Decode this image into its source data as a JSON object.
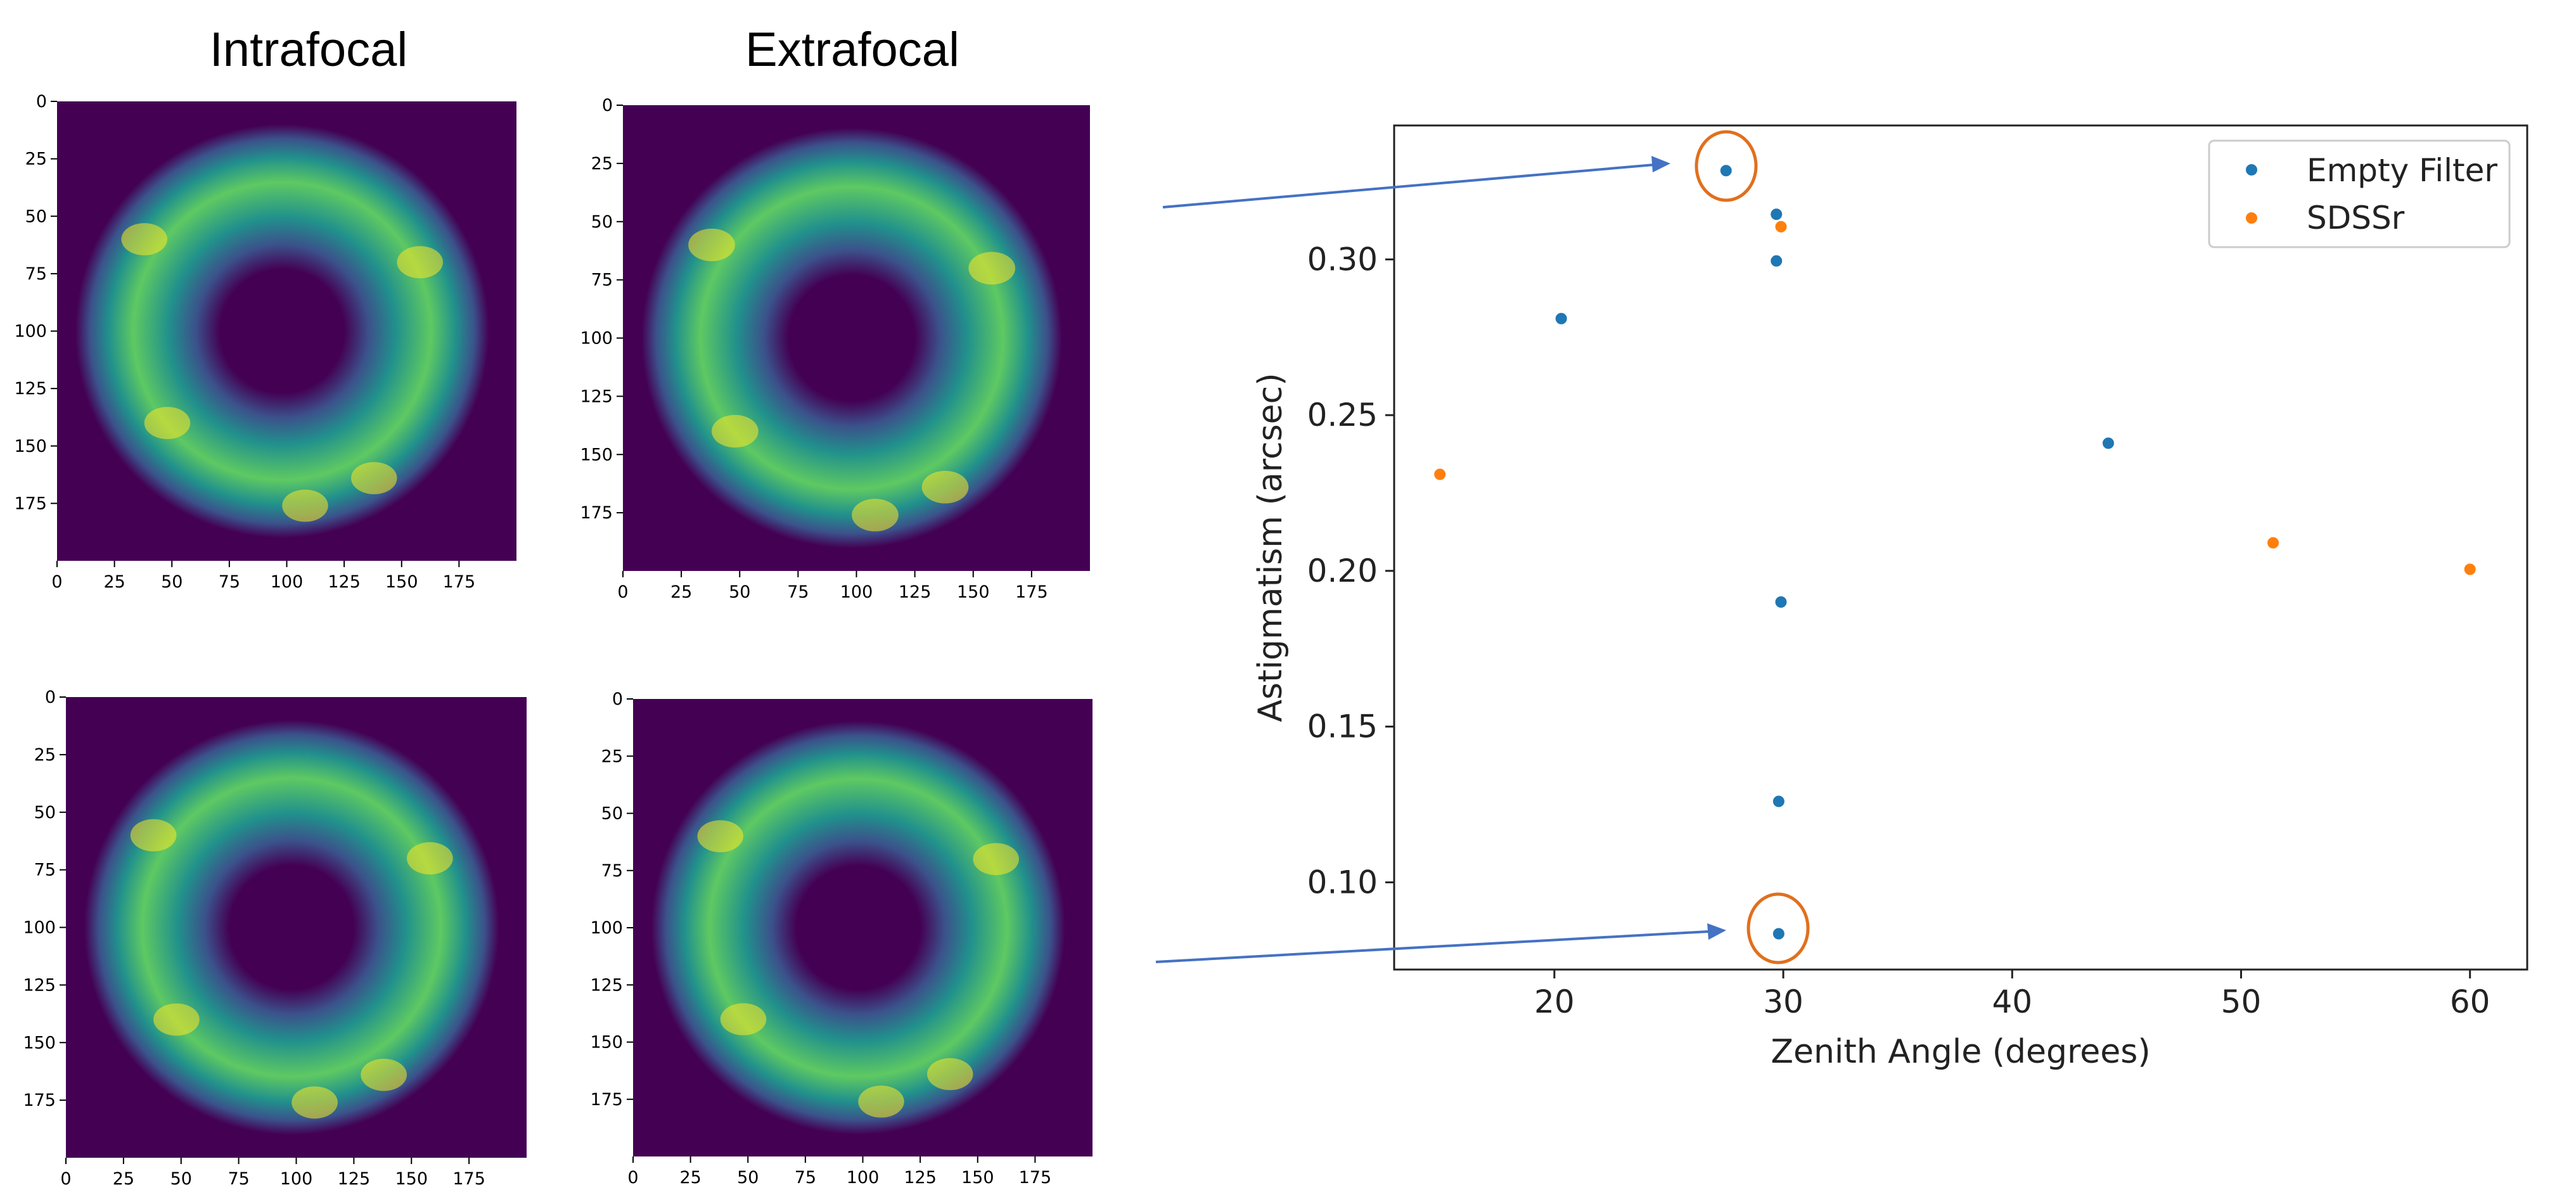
{
  "panels": {
    "titles": [
      "Intrafocal",
      "Extrafocal"
    ],
    "tick_labels": [
      "0",
      "25",
      "50",
      "75",
      "100",
      "125",
      "150",
      "175"
    ],
    "colormap": [
      "#440154",
      "#3b528b",
      "#21918c",
      "#5ec962",
      "#fde725"
    ],
    "images": [
      {
        "column": "Intrafocal",
        "row": 1
      },
      {
        "column": "Extrafocal",
        "row": 1
      },
      {
        "column": "Intrafocal",
        "row": 2
      },
      {
        "column": "Extrafocal",
        "row": 2
      }
    ]
  },
  "annotations": {
    "circle_color": "#e0701e",
    "arrow_color": "#4472c4"
  },
  "chart_data": {
    "type": "scatter",
    "title": "",
    "xlabel": "Zenith Angle (degrees)",
    "ylabel": "Astigmatism (arcsec)",
    "xlim": [
      13,
      62.5
    ],
    "ylim": [
      0.072,
      0.343
    ],
    "xticks": [
      20,
      30,
      40,
      50,
      60
    ],
    "yticks": [
      0.1,
      0.15,
      0.2,
      0.25,
      0.3
    ],
    "ytick_labels": [
      "0.10",
      "0.15",
      "0.20",
      "0.25",
      "0.30"
    ],
    "grid": false,
    "legend_position": "top-right",
    "series": [
      {
        "name": "Empty Filter",
        "color": "#1f77b4",
        "points": [
          {
            "x": 27.5,
            "y": 0.3285
          },
          {
            "x": 29.7,
            "y": 0.3145
          },
          {
            "x": 29.7,
            "y": 0.2995
          },
          {
            "x": 20.3,
            "y": 0.281
          },
          {
            "x": 44.2,
            "y": 0.241
          },
          {
            "x": 29.9,
            "y": 0.19
          },
          {
            "x": 29.8,
            "y": 0.126
          },
          {
            "x": 29.8,
            "y": 0.0835
          }
        ]
      },
      {
        "name": "SDSSr",
        "color": "#ff7f0e",
        "points": [
          {
            "x": 29.9,
            "y": 0.3105
          },
          {
            "x": 15.0,
            "y": 0.231
          },
          {
            "x": 51.4,
            "y": 0.209
          },
          {
            "x": 60.0,
            "y": 0.2005
          }
        ]
      }
    ]
  }
}
